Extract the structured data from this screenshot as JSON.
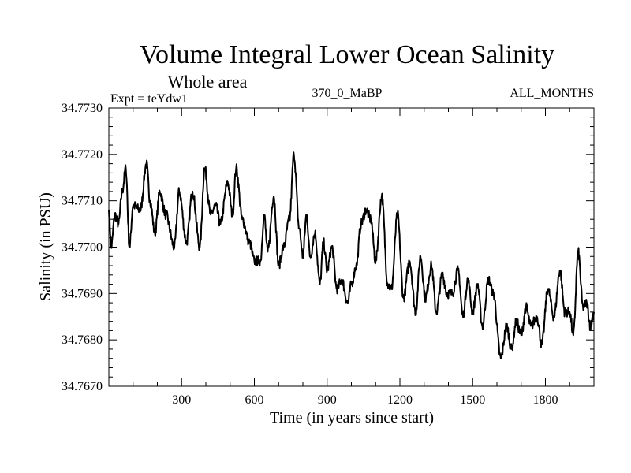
{
  "chart_data": {
    "type": "line",
    "title": "Volume Integral Lower Ocean Salinity",
    "subtitle": "Whole area",
    "annotations": {
      "left": "Expt = teYdw1",
      "center": "370_0_MaBP",
      "right": "ALL_MONTHS"
    },
    "xlabel": "Time (in years since start)",
    "ylabel": "Salinity (in PSU)",
    "xlim": [
      0,
      2000
    ],
    "ylim": [
      34.767,
      34.773
    ],
    "x_ticks": [
      300,
      600,
      900,
      1200,
      1500,
      1800
    ],
    "x_tick_labels": [
      "300",
      "600",
      "900",
      "1200",
      "1500",
      "1800"
    ],
    "x_minor_step": 100,
    "y_ticks": [
      34.767,
      34.768,
      34.769,
      34.77,
      34.771,
      34.772,
      34.773
    ],
    "y_tick_labels": [
      "34.7670",
      "34.7680",
      "34.7690",
      "34.7700",
      "34.7710",
      "34.7720",
      "34.7730"
    ],
    "y_minor_step": 0.0002,
    "grid": false,
    "legend": "none",
    "series": [
      {
        "name": "Salinity",
        "color": "#000000",
        "x": [
          0,
          10,
          25,
          40,
          55,
          70,
          85,
          100,
          130,
          155,
          170,
          190,
          210,
          235,
          270,
          290,
          320,
          345,
          375,
          395,
          420,
          440,
          460,
          490,
          510,
          525,
          550,
          580,
          600,
          625,
          640,
          655,
          680,
          700,
          720,
          745,
          763,
          785,
          800,
          815,
          830,
          850,
          870,
          885,
          900,
          920,
          940,
          960,
          985,
          1000,
          1020,
          1040,
          1060,
          1080,
          1100,
          1125,
          1150,
          1165,
          1190,
          1215,
          1240,
          1265,
          1285,
          1305,
          1330,
          1350,
          1375,
          1395,
          1415,
          1440,
          1460,
          1480,
          1500,
          1520,
          1540,
          1565,
          1585,
          1616,
          1640,
          1660,
          1680,
          1700,
          1720,
          1740,
          1765,
          1785,
          1810,
          1835,
          1860,
          1880,
          1900,
          1915,
          1935,
          1955,
          1970,
          1985,
          2000
        ],
        "values": [
          34.7708,
          34.77,
          34.7707,
          34.7705,
          34.7712,
          34.7717,
          34.77,
          34.7709,
          34.7708,
          34.7718,
          34.771,
          34.7703,
          34.7712,
          34.7707,
          34.77,
          34.7712,
          34.7701,
          34.7712,
          34.77,
          34.7717,
          34.7707,
          34.7709,
          34.7705,
          34.7714,
          34.7707,
          34.7717,
          34.7706,
          34.7701,
          34.7697,
          34.7697,
          34.7707,
          34.7699,
          34.7711,
          34.7696,
          34.77,
          34.7706,
          34.772,
          34.7704,
          34.7698,
          34.7707,
          34.7698,
          34.7703,
          34.7692,
          34.7701,
          34.7695,
          34.77,
          34.7691,
          34.7693,
          34.7688,
          34.7692,
          34.7696,
          34.7705,
          34.7708,
          34.7706,
          34.7697,
          34.7711,
          34.7692,
          34.7691,
          34.7707,
          34.7689,
          34.7697,
          34.7686,
          34.7698,
          34.7689,
          34.7696,
          34.7686,
          34.7694,
          34.769,
          34.769,
          34.7695,
          34.7685,
          34.7693,
          34.7686,
          34.7692,
          34.7683,
          34.7693,
          34.769,
          34.7676,
          34.7683,
          34.7678,
          34.7684,
          34.7681,
          34.7687,
          34.7683,
          34.7685,
          34.7679,
          34.7691,
          34.7685,
          34.7695,
          34.7686,
          34.7686,
          34.7681,
          34.7699,
          34.7687,
          34.7688,
          34.7683,
          34.7686
        ]
      }
    ]
  }
}
